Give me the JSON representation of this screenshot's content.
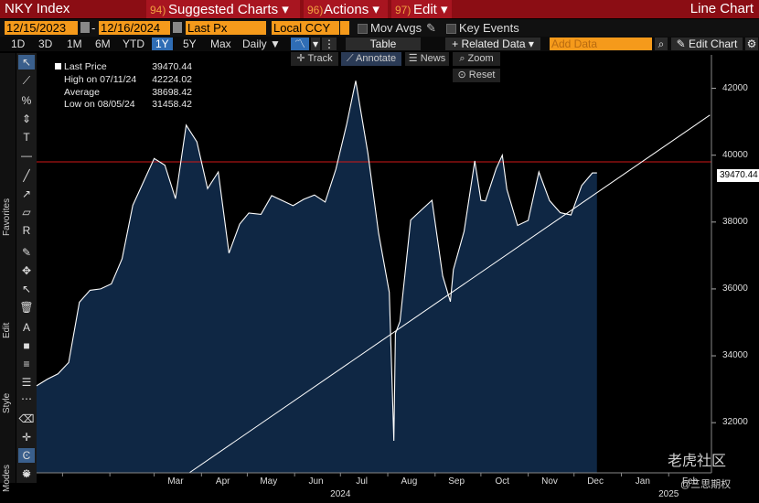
{
  "header": {
    "ticker": "NKY Index",
    "menu1_num": "94)",
    "menu1_label": "Suggested Charts ▾",
    "menu2_num": "96)",
    "menu2_label": "Actions ▾",
    "menu3_num": "97)",
    "menu3_label": "Edit ▾",
    "right_label": "Line Chart"
  },
  "controls": {
    "start_date": "12/15/2023",
    "end_date": "12/16/2024",
    "date_sep": "-",
    "field": "Last Px",
    "currency": "Local CCY",
    "mov_avgs": "Mov Avgs",
    "key_events": "Key Events"
  },
  "periods": [
    "1D",
    "3D",
    "1M",
    "6M",
    "YTD",
    "1Y",
    "5Y",
    "Max"
  ],
  "selected_period": "1Y",
  "frequency": "Daily ▼",
  "buttons": {
    "table": "Table",
    "related": "+ Related Data ▾",
    "add_data_placeholder": "Add Data",
    "edit_chart": "✎ Edit Chart",
    "track": "✛ Track",
    "annotate": "⟋ Annotate",
    "news": "☰ News",
    "zoom": "⌕ Zoom",
    "reset": "⊙ Reset"
  },
  "side_labels": {
    "favorites": "Favorites",
    "edit": "Edit",
    "style": "Style",
    "modes": "Modes"
  },
  "legend": {
    "last_label": "Last Price",
    "last_value": "39470.44",
    "high_label": "High on 07/11/24",
    "high_value": "42224.02",
    "avg_label": "Average",
    "avg_value": "38698.42",
    "low_label": "Low on 08/05/24",
    "low_value": "31458.42"
  },
  "watermark": {
    "brand": "老虎社区",
    "user": "@三思期权"
  },
  "chart_data": {
    "type": "area",
    "series_name": "Last Price",
    "x": [
      "2023-12-15",
      "2023-12-22",
      "2023-12-29",
      "2024-01-05",
      "2024-01-12",
      "2024-01-19",
      "2024-01-26",
      "2024-02-02",
      "2024-02-09",
      "2024-02-16",
      "2024-02-22",
      "2024-03-01",
      "2024-03-08",
      "2024-03-15",
      "2024-03-22",
      "2024-03-29",
      "2024-04-05",
      "2024-04-12",
      "2024-04-19",
      "2024-04-26",
      "2024-05-02",
      "2024-05-10",
      "2024-05-17",
      "2024-05-24",
      "2024-05-31",
      "2024-06-07",
      "2024-06-14",
      "2024-06-21",
      "2024-06-28",
      "2024-07-05",
      "2024-07-11",
      "2024-07-19",
      "2024-07-26",
      "2024-08-02",
      "2024-08-05",
      "2024-08-06",
      "2024-08-09",
      "2024-08-16",
      "2024-08-23",
      "2024-08-30",
      "2024-09-06",
      "2024-09-11",
      "2024-09-13",
      "2024-09-20",
      "2024-09-27",
      "2024-10-01",
      "2024-10-04",
      "2024-10-11",
      "2024-10-15",
      "2024-10-18",
      "2024-10-25",
      "2024-11-01",
      "2024-11-08",
      "2024-11-15",
      "2024-11-22",
      "2024-11-29",
      "2024-12-06",
      "2024-12-13",
      "2024-12-16"
    ],
    "y": [
      33100,
      33300,
      33460,
      33800,
      35600,
      35960,
      36000,
      36150,
      36900,
      38500,
      39100,
      39900,
      39700,
      38700,
      40900,
      40400,
      39000,
      39500,
      37070,
      37940,
      38270,
      38230,
      38790,
      38640,
      38490,
      38680,
      38810,
      38600,
      39580,
      40900,
      42224,
      40060,
      37670,
      35900,
      31458,
      34670,
      35030,
      38060,
      38360,
      38650,
      36390,
      35620,
      36580,
      37720,
      39830,
      38650,
      38630,
      39600,
      40000,
      38980,
      37900,
      38050,
      39500,
      38640,
      38280,
      38210,
      39090,
      39470,
      39470
    ],
    "xlabel": "",
    "ylabel": "",
    "ylim": [
      30500,
      43000
    ],
    "x_tick_labels": [
      "Mar",
      "Apr",
      "May",
      "Jun",
      "Jul",
      "Aug",
      "Sep",
      "Oct",
      "Nov",
      "Dec",
      "Jan",
      "Feb"
    ],
    "year_labels": [
      "2024",
      "2025"
    ],
    "y_ticks": [
      32000,
      34000,
      36000,
      38000,
      40000,
      42000
    ],
    "last_price_line": 39800,
    "trendline": {
      "x": [
        "2024-03-24",
        "2025-02-28"
      ],
      "y": [
        30500,
        41200
      ]
    },
    "last_value_label": "39470.44",
    "colors": {
      "fill": "#0f2744",
      "line": "#ffffff",
      "hline": "#d01818",
      "trend": "#ffffff"
    }
  }
}
